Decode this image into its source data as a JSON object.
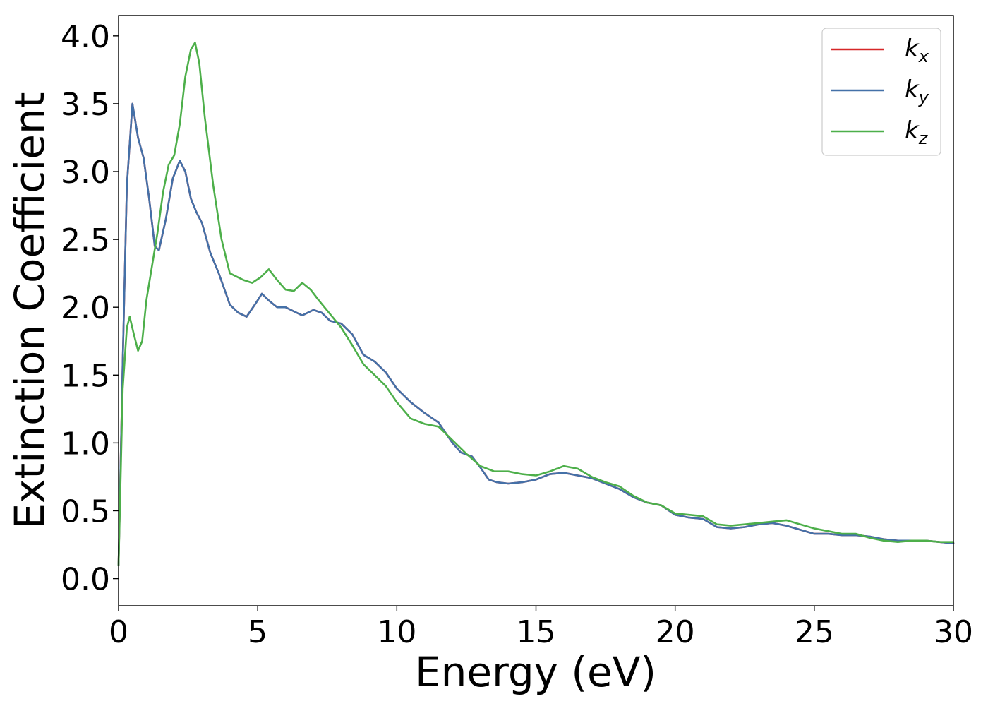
{
  "chart_data": {
    "type": "line",
    "xlabel": "Energy (eV)",
    "ylabel": "Extinction Coefficient",
    "xlim": [
      0,
      30
    ],
    "ylim": [
      -0.2,
      4.15
    ],
    "xticks": [
      0,
      5,
      10,
      15,
      20,
      25,
      30
    ],
    "yticks": [
      0.0,
      0.5,
      1.0,
      1.5,
      2.0,
      2.5,
      3.0,
      3.5,
      4.0
    ],
    "xtick_labels": [
      "0",
      "5",
      "10",
      "15",
      "20",
      "25",
      "30"
    ],
    "ytick_labels": [
      "0.0",
      "0.5",
      "1.0",
      "1.5",
      "2.0",
      "2.5",
      "3.0",
      "3.5",
      "4.0"
    ],
    "grid": false,
    "legend_position": "top-right",
    "series": [
      {
        "name": "k",
        "sub": "x",
        "color": "#d62728",
        "points": [
          [
            0,
            0.1
          ],
          [
            0.15,
            1.6
          ],
          [
            0.3,
            2.9
          ],
          [
            0.5,
            3.5
          ],
          [
            0.7,
            3.25
          ],
          [
            0.9,
            3.1
          ],
          [
            1.1,
            2.8
          ],
          [
            1.3,
            2.45
          ],
          [
            1.45,
            2.42
          ],
          [
            1.7,
            2.65
          ],
          [
            1.95,
            2.95
          ],
          [
            2.2,
            3.08
          ],
          [
            2.4,
            3.0
          ],
          [
            2.6,
            2.8
          ],
          [
            2.8,
            2.7
          ],
          [
            3.0,
            2.62
          ],
          [
            3.3,
            2.4
          ],
          [
            3.6,
            2.25
          ],
          [
            4.0,
            2.02
          ],
          [
            4.3,
            1.96
          ],
          [
            4.6,
            1.93
          ],
          [
            4.9,
            2.02
          ],
          [
            5.15,
            2.1
          ],
          [
            5.4,
            2.05
          ],
          [
            5.7,
            2.0
          ],
          [
            6.0,
            2.0
          ],
          [
            6.3,
            1.97
          ],
          [
            6.6,
            1.94
          ],
          [
            7.0,
            1.98
          ],
          [
            7.3,
            1.96
          ],
          [
            7.6,
            1.9
          ],
          [
            8.0,
            1.88
          ],
          [
            8.4,
            1.8
          ],
          [
            8.8,
            1.65
          ],
          [
            9.2,
            1.6
          ],
          [
            9.6,
            1.52
          ],
          [
            10.0,
            1.4
          ],
          [
            10.5,
            1.3
          ],
          [
            11.0,
            1.22
          ],
          [
            11.5,
            1.15
          ],
          [
            12.0,
            1.0
          ],
          [
            12.3,
            0.93
          ],
          [
            12.7,
            0.9
          ],
          [
            13.0,
            0.82
          ],
          [
            13.3,
            0.73
          ],
          [
            13.6,
            0.71
          ],
          [
            14.0,
            0.7
          ],
          [
            14.5,
            0.71
          ],
          [
            15.0,
            0.73
          ],
          [
            15.5,
            0.77
          ],
          [
            16.0,
            0.78
          ],
          [
            16.5,
            0.76
          ],
          [
            17.0,
            0.74
          ],
          [
            17.5,
            0.7
          ],
          [
            18.0,
            0.66
          ],
          [
            18.5,
            0.6
          ],
          [
            19.0,
            0.56
          ],
          [
            19.5,
            0.54
          ],
          [
            20.0,
            0.47
          ],
          [
            20.5,
            0.45
          ],
          [
            21.0,
            0.44
          ],
          [
            21.5,
            0.38
          ],
          [
            22.0,
            0.37
          ],
          [
            22.5,
            0.38
          ],
          [
            23.0,
            0.4
          ],
          [
            23.5,
            0.41
          ],
          [
            24.0,
            0.39
          ],
          [
            24.5,
            0.36
          ],
          [
            25.0,
            0.33
          ],
          [
            25.5,
            0.33
          ],
          [
            26.0,
            0.32
          ],
          [
            26.5,
            0.32
          ],
          [
            27.0,
            0.31
          ],
          [
            27.5,
            0.29
          ],
          [
            28.0,
            0.28
          ],
          [
            28.5,
            0.28
          ],
          [
            29.0,
            0.28
          ],
          [
            29.5,
            0.27
          ],
          [
            30.0,
            0.26
          ]
        ]
      },
      {
        "name": "k",
        "sub": "y",
        "color": "#4471a8",
        "points": [
          [
            0,
            0.1
          ],
          [
            0.15,
            1.6
          ],
          [
            0.3,
            2.9
          ],
          [
            0.5,
            3.5
          ],
          [
            0.7,
            3.25
          ],
          [
            0.9,
            3.1
          ],
          [
            1.1,
            2.8
          ],
          [
            1.3,
            2.45
          ],
          [
            1.45,
            2.42
          ],
          [
            1.7,
            2.65
          ],
          [
            1.95,
            2.95
          ],
          [
            2.2,
            3.08
          ],
          [
            2.4,
            3.0
          ],
          [
            2.6,
            2.8
          ],
          [
            2.8,
            2.7
          ],
          [
            3.0,
            2.62
          ],
          [
            3.3,
            2.4
          ],
          [
            3.6,
            2.25
          ],
          [
            4.0,
            2.02
          ],
          [
            4.3,
            1.96
          ],
          [
            4.6,
            1.93
          ],
          [
            4.9,
            2.02
          ],
          [
            5.15,
            2.1
          ],
          [
            5.4,
            2.05
          ],
          [
            5.7,
            2.0
          ],
          [
            6.0,
            2.0
          ],
          [
            6.3,
            1.97
          ],
          [
            6.6,
            1.94
          ],
          [
            7.0,
            1.98
          ],
          [
            7.3,
            1.96
          ],
          [
            7.6,
            1.9
          ],
          [
            8.0,
            1.88
          ],
          [
            8.4,
            1.8
          ],
          [
            8.8,
            1.65
          ],
          [
            9.2,
            1.6
          ],
          [
            9.6,
            1.52
          ],
          [
            10.0,
            1.4
          ],
          [
            10.5,
            1.3
          ],
          [
            11.0,
            1.22
          ],
          [
            11.5,
            1.15
          ],
          [
            12.0,
            1.0
          ],
          [
            12.3,
            0.93
          ],
          [
            12.7,
            0.9
          ],
          [
            13.0,
            0.82
          ],
          [
            13.3,
            0.73
          ],
          [
            13.6,
            0.71
          ],
          [
            14.0,
            0.7
          ],
          [
            14.5,
            0.71
          ],
          [
            15.0,
            0.73
          ],
          [
            15.5,
            0.77
          ],
          [
            16.0,
            0.78
          ],
          [
            16.5,
            0.76
          ],
          [
            17.0,
            0.74
          ],
          [
            17.5,
            0.7
          ],
          [
            18.0,
            0.66
          ],
          [
            18.5,
            0.6
          ],
          [
            19.0,
            0.56
          ],
          [
            19.5,
            0.54
          ],
          [
            20.0,
            0.47
          ],
          [
            20.5,
            0.45
          ],
          [
            21.0,
            0.44
          ],
          [
            21.5,
            0.38
          ],
          [
            22.0,
            0.37
          ],
          [
            22.5,
            0.38
          ],
          [
            23.0,
            0.4
          ],
          [
            23.5,
            0.41
          ],
          [
            24.0,
            0.39
          ],
          [
            24.5,
            0.36
          ],
          [
            25.0,
            0.33
          ],
          [
            25.5,
            0.33
          ],
          [
            26.0,
            0.32
          ],
          [
            26.5,
            0.32
          ],
          [
            27.0,
            0.31
          ],
          [
            27.5,
            0.29
          ],
          [
            28.0,
            0.28
          ],
          [
            28.5,
            0.28
          ],
          [
            29.0,
            0.28
          ],
          [
            29.5,
            0.27
          ],
          [
            30.0,
            0.26
          ]
        ]
      },
      {
        "name": "k",
        "sub": "z",
        "color": "#4daf4a",
        "points": [
          [
            0,
            0.1
          ],
          [
            0.15,
            1.4
          ],
          [
            0.3,
            1.85
          ],
          [
            0.4,
            1.93
          ],
          [
            0.55,
            1.8
          ],
          [
            0.7,
            1.68
          ],
          [
            0.85,
            1.75
          ],
          [
            1.0,
            2.05
          ],
          [
            1.2,
            2.3
          ],
          [
            1.4,
            2.55
          ],
          [
            1.6,
            2.85
          ],
          [
            1.8,
            3.05
          ],
          [
            2.0,
            3.12
          ],
          [
            2.2,
            3.35
          ],
          [
            2.4,
            3.7
          ],
          [
            2.6,
            3.9
          ],
          [
            2.75,
            3.95
          ],
          [
            2.9,
            3.8
          ],
          [
            3.1,
            3.4
          ],
          [
            3.4,
            2.9
          ],
          [
            3.7,
            2.5
          ],
          [
            4.0,
            2.25
          ],
          [
            4.3,
            2.22
          ],
          [
            4.5,
            2.2
          ],
          [
            4.8,
            2.18
          ],
          [
            5.1,
            2.22
          ],
          [
            5.4,
            2.28
          ],
          [
            5.7,
            2.2
          ],
          [
            6.0,
            2.13
          ],
          [
            6.3,
            2.12
          ],
          [
            6.6,
            2.18
          ],
          [
            6.9,
            2.13
          ],
          [
            7.2,
            2.05
          ],
          [
            7.6,
            1.95
          ],
          [
            8.0,
            1.85
          ],
          [
            8.4,
            1.72
          ],
          [
            8.8,
            1.58
          ],
          [
            9.2,
            1.5
          ],
          [
            9.6,
            1.42
          ],
          [
            10.0,
            1.3
          ],
          [
            10.5,
            1.18
          ],
          [
            11.0,
            1.14
          ],
          [
            11.5,
            1.12
          ],
          [
            12.0,
            1.02
          ],
          [
            12.5,
            0.92
          ],
          [
            13.0,
            0.83
          ],
          [
            13.5,
            0.79
          ],
          [
            14.0,
            0.79
          ],
          [
            14.5,
            0.77
          ],
          [
            15.0,
            0.76
          ],
          [
            15.5,
            0.79
          ],
          [
            16.0,
            0.83
          ],
          [
            16.5,
            0.81
          ],
          [
            17.0,
            0.75
          ],
          [
            17.5,
            0.71
          ],
          [
            18.0,
            0.68
          ],
          [
            18.5,
            0.61
          ],
          [
            19.0,
            0.56
          ],
          [
            19.5,
            0.54
          ],
          [
            20.0,
            0.48
          ],
          [
            20.5,
            0.47
          ],
          [
            21.0,
            0.46
          ],
          [
            21.5,
            0.4
          ],
          [
            22.0,
            0.39
          ],
          [
            22.5,
            0.4
          ],
          [
            23.0,
            0.41
          ],
          [
            23.5,
            0.42
          ],
          [
            24.0,
            0.43
          ],
          [
            24.5,
            0.4
          ],
          [
            25.0,
            0.37
          ],
          [
            25.5,
            0.35
          ],
          [
            26.0,
            0.33
          ],
          [
            26.5,
            0.33
          ],
          [
            27.0,
            0.3
          ],
          [
            27.5,
            0.28
          ],
          [
            28.0,
            0.27
          ],
          [
            28.5,
            0.28
          ],
          [
            29.0,
            0.28
          ],
          [
            29.5,
            0.27
          ],
          [
            30.0,
            0.27
          ]
        ]
      }
    ]
  }
}
